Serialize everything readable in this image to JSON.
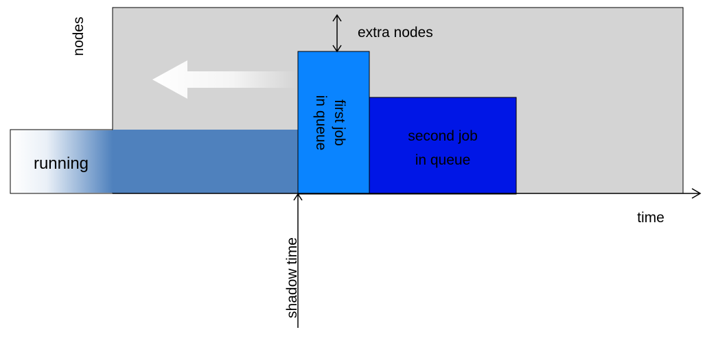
{
  "labels": {
    "y_axis": "nodes",
    "x_axis": "time",
    "extra_nodes": "extra nodes",
    "running": "running",
    "first_job_line1": "first job",
    "first_job_line2": "in queue",
    "second_job_line1": "second job",
    "second_job_line2": "in queue",
    "shadow_time": "shadow time"
  },
  "colors": {
    "free_area": "#d4d4d4",
    "running_job": "#4f81bd",
    "first_job": "#0a84ff",
    "second_job": "#0016e6",
    "arrow": "#ffffff",
    "outline": "#000000"
  }
}
